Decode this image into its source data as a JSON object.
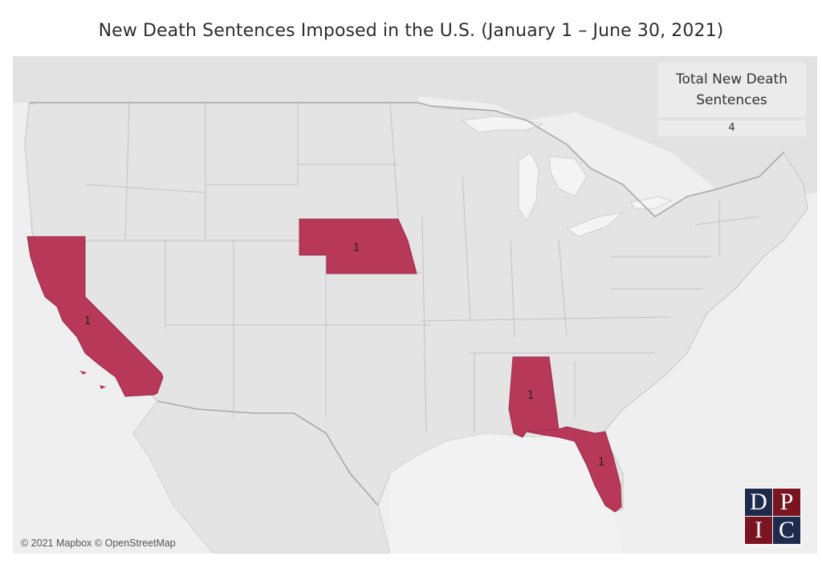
{
  "title": "New Death Sentences Imposed in the U.S. (January 1 – June 30, 2021)",
  "kpi": {
    "label": "Total New Death Sentences",
    "value": "4"
  },
  "attribution": "© 2021 Mapbox © OpenStreetMap",
  "logo": {
    "letters": [
      "D",
      "P",
      "I",
      "C"
    ],
    "colors": [
      "#1f2a4d",
      "#7a1421",
      "#7a1421",
      "#1f2a4d"
    ]
  },
  "colors": {
    "highlight": "#b8385a",
    "land": "#e4e4e4",
    "water": "#f4f4f4",
    "border": "#bcbcbc"
  },
  "states": [
    {
      "name": "California",
      "count": "1"
    },
    {
      "name": "Nebraska",
      "count": "1"
    },
    {
      "name": "Alabama",
      "count": "1"
    },
    {
      "name": "Florida",
      "count": "1"
    }
  ]
}
